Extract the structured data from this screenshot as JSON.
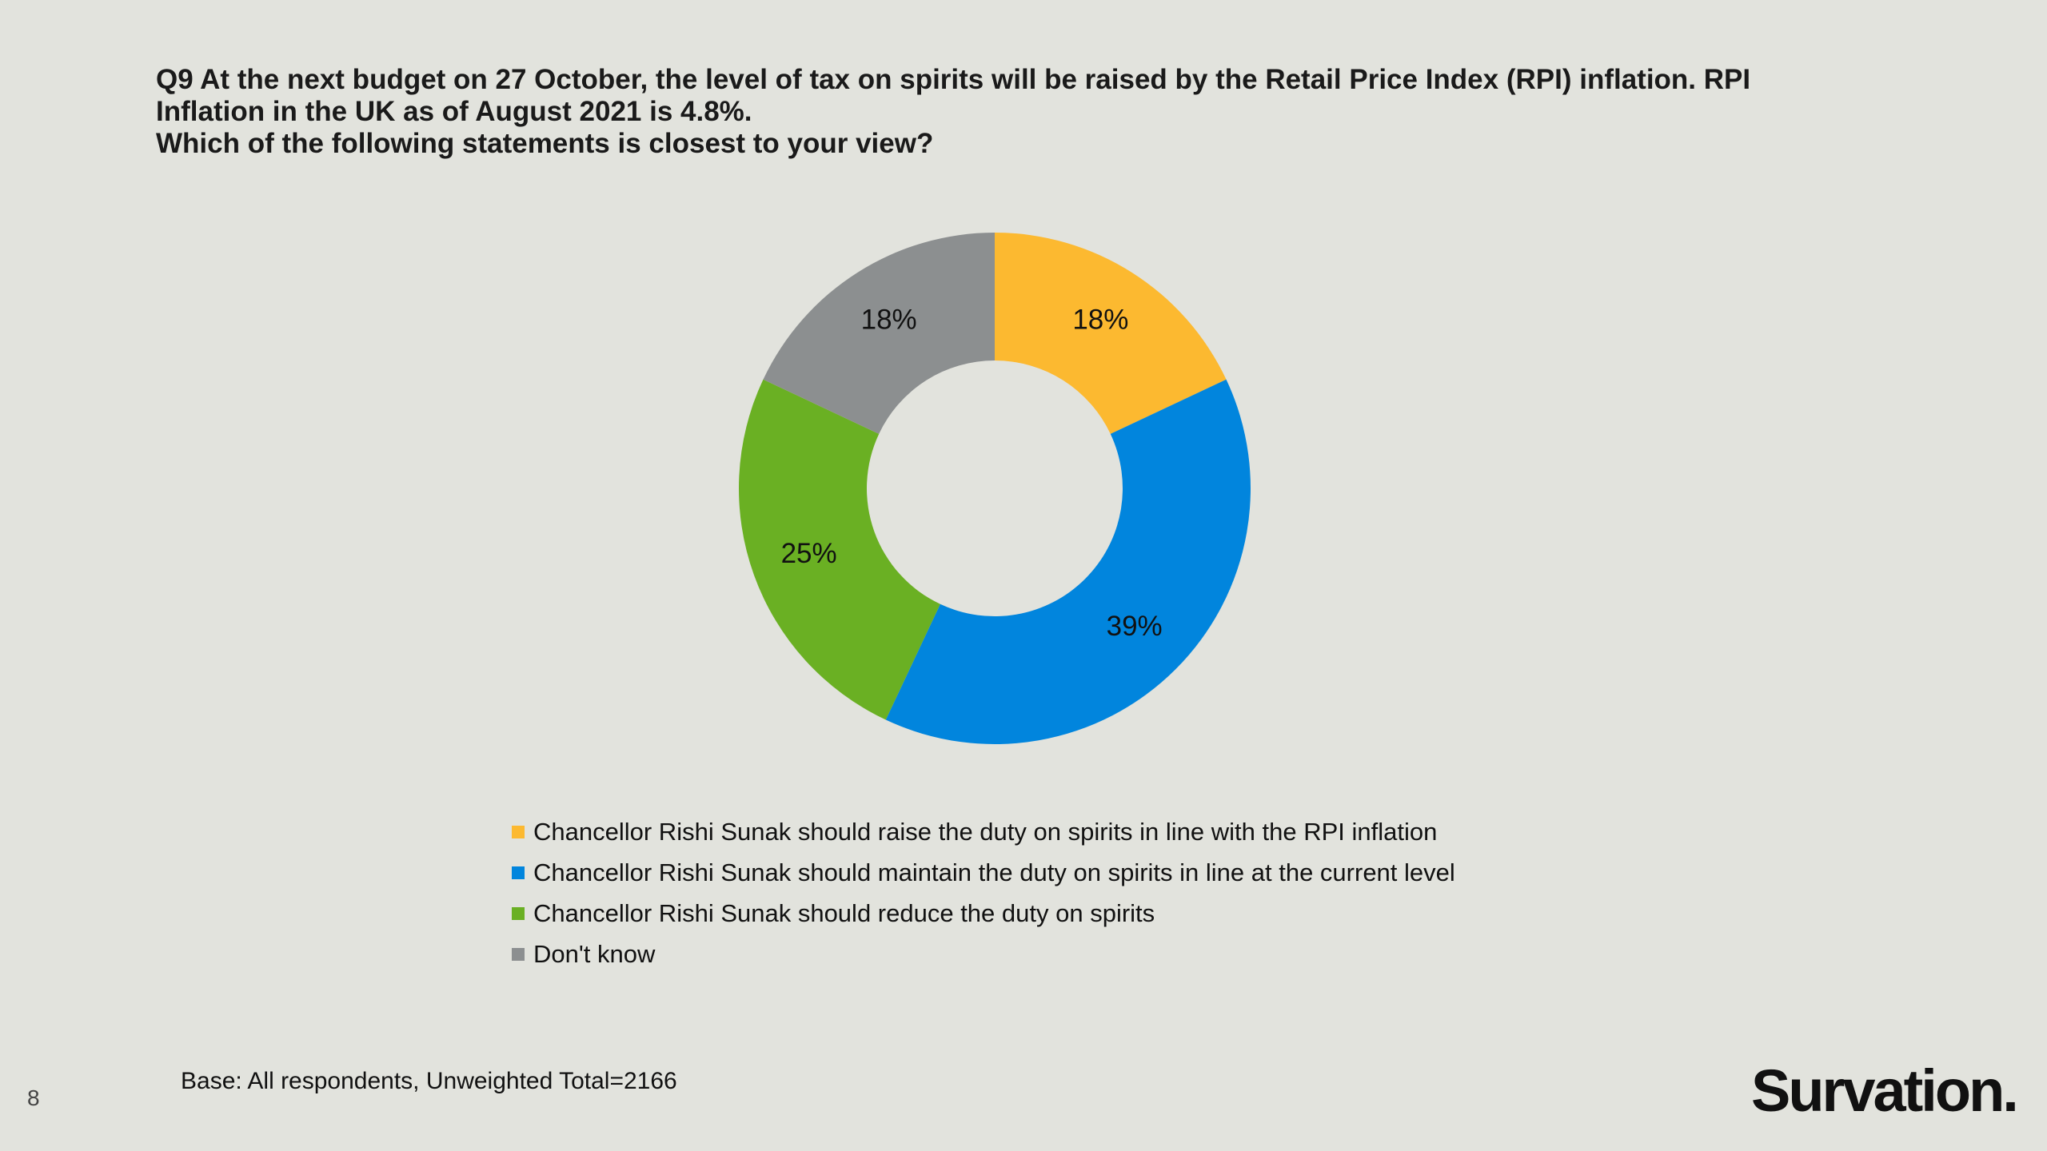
{
  "slide": {
    "title_lines": [
      "Q9 At the next budget on 27 October, the level of tax on spirits will be raised by the Retail Price Index (RPI) inflation. RPI",
      "Inflation in the UK as of August 2021 is 4.8%.",
      "Which of the following statements is closest to your view?"
    ],
    "base_note": "Base: All respondents, Unweighted Total=2166",
    "page_number": "8",
    "brand": "Survation."
  },
  "chart_data": {
    "type": "pie",
    "donut": true,
    "title": "",
    "legend_position": "bottom",
    "slices": [
      {
        "name": "Chancellor Rishi Sunak should raise the duty on spirits in line with the RPI inflation",
        "value": 18,
        "label": "18%",
        "color": "#fcb930"
      },
      {
        "name": "Chancellor Rishi Sunak should maintain the duty on spirits in line at the current level",
        "value": 39,
        "label": "39%",
        "color": "#0185dd"
      },
      {
        "name": "Chancellor Rishi Sunak should reduce the duty on spirits",
        "value": 25,
        "label": "25%",
        "color": "#6ab023"
      },
      {
        "name": "Don't know",
        "value": 18,
        "label": "18%",
        "color": "#8c8f90"
      }
    ]
  }
}
